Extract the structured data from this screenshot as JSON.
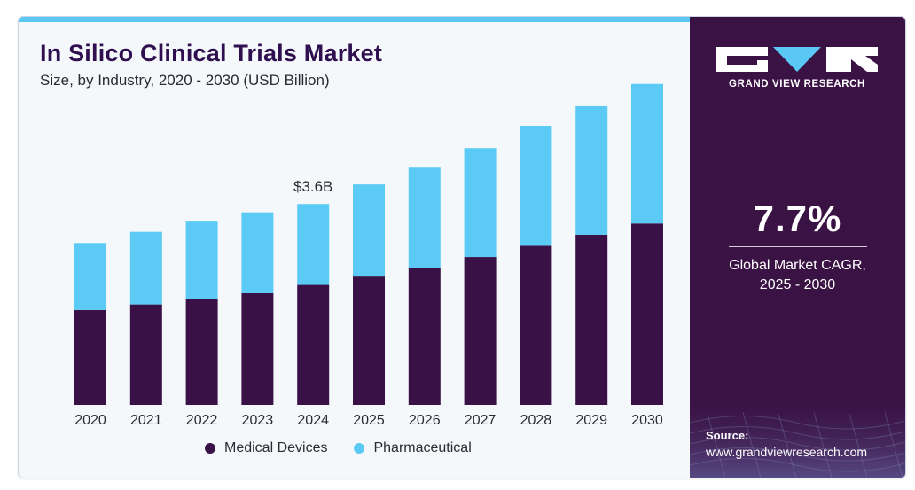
{
  "header": {
    "title": "In Silico Clinical Trials Market",
    "subtitle": "Size, by Industry, 2020 - 2030 (USD Billion)"
  },
  "colors": {
    "medical_devices": "#3a1146",
    "pharmaceutical": "#5bcbf5",
    "sidebar": "#3a1244",
    "accent": "#5ac8f5"
  },
  "chart_data": {
    "type": "bar",
    "stacked": true,
    "categories": [
      "2020",
      "2021",
      "2022",
      "2023",
      "2024",
      "2025",
      "2026",
      "2027",
      "2028",
      "2029",
      "2030"
    ],
    "series": [
      {
        "name": "Medical Devices",
        "values": [
          1.7,
          1.8,
          1.9,
          2.0,
          2.15,
          2.3,
          2.45,
          2.65,
          2.85,
          3.05,
          3.25
        ]
      },
      {
        "name": "Pharmaceutical",
        "values": [
          1.2,
          1.3,
          1.4,
          1.45,
          1.45,
          1.65,
          1.8,
          1.95,
          2.15,
          2.3,
          2.5
        ]
      }
    ],
    "annotations": [
      {
        "category": "2024",
        "label": "$3.6B"
      }
    ],
    "ylim": [
      0,
      6
    ],
    "grid": false,
    "legend": "bottom",
    "xlabel": "",
    "ylabel": ""
  },
  "legend": {
    "items": [
      {
        "label": "Medical Devices"
      },
      {
        "label": "Pharmaceutical"
      }
    ]
  },
  "sidebar": {
    "logo_text": "GRAND VIEW RESEARCH",
    "cagr_value": "7.7%",
    "cagr_label_line1": "Global Market CAGR,",
    "cagr_label_line2": "2025 - 2030",
    "source_title": "Source:",
    "source_url": "www.grandviewresearch.com"
  }
}
